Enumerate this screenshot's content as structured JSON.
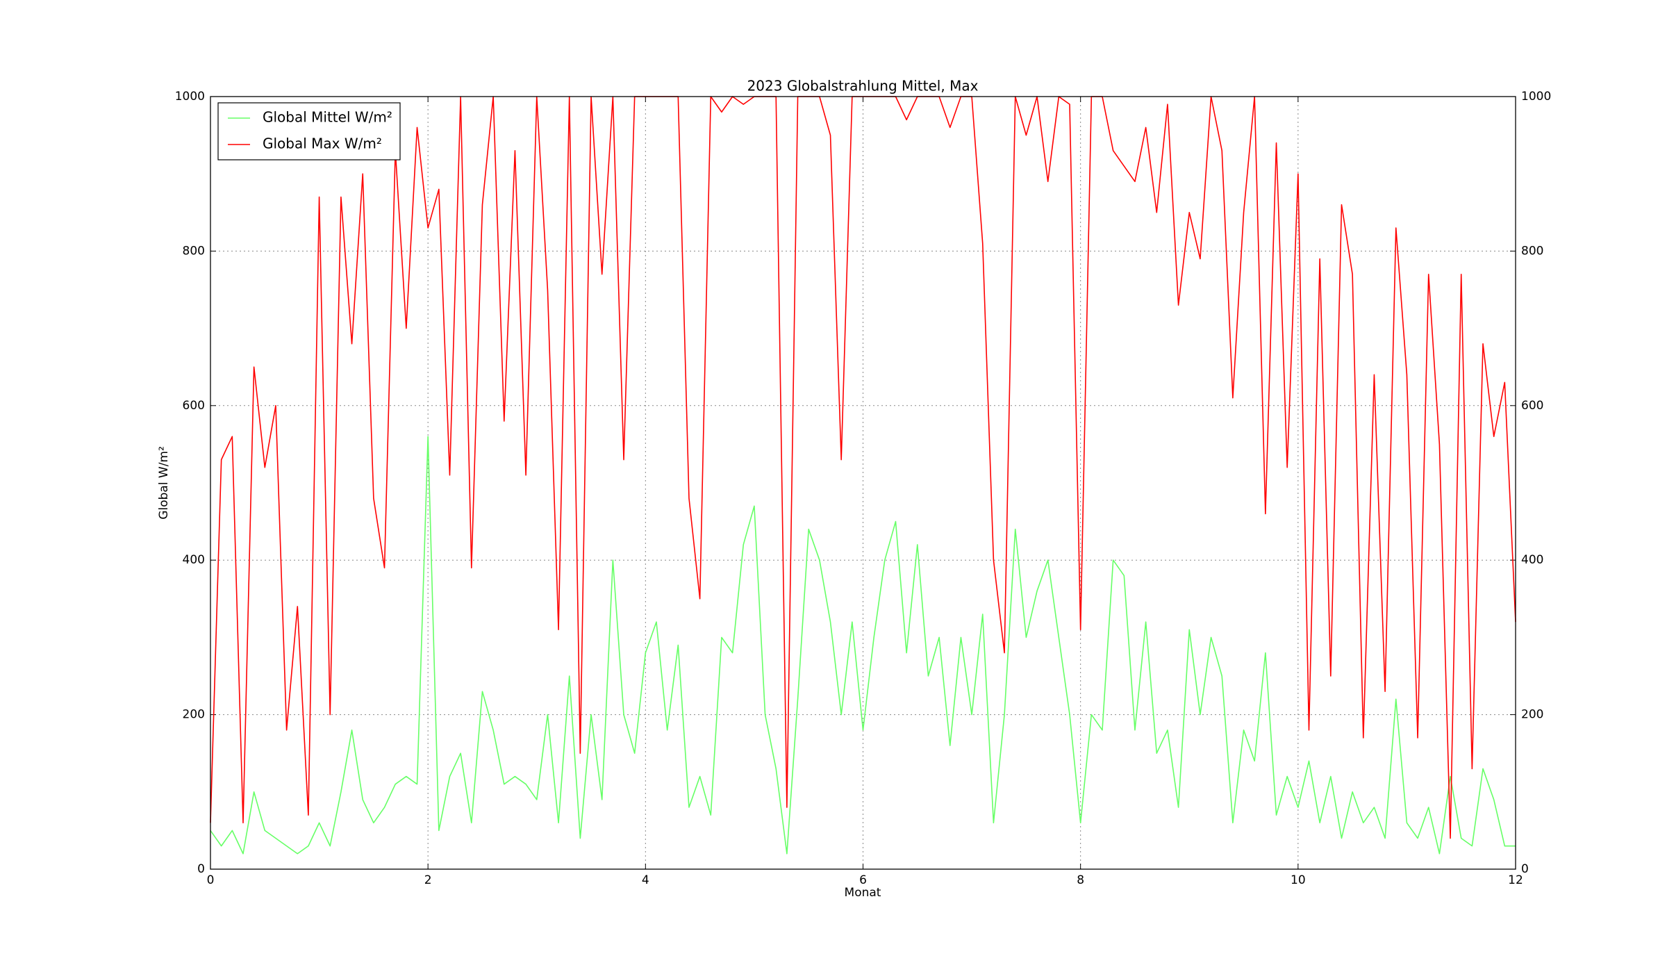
{
  "chart_data": {
    "type": "line",
    "title": "2023 Globalstrahlung Mittel, Max",
    "xlabel": "Monat",
    "ylabel": "Global W/m²",
    "x": [
      0,
      0.1,
      0.2,
      0.3,
      0.4,
      0.5,
      0.6,
      0.7,
      0.8,
      0.9,
      1,
      1.1,
      1.2,
      1.3,
      1.4,
      1.5,
      1.6,
      1.7,
      1.8,
      1.9,
      2,
      2.1,
      2.2,
      2.3,
      2.4,
      2.5,
      2.6,
      2.7,
      2.8,
      2.9,
      3,
      3.1,
      3.2,
      3.3,
      3.4,
      3.5,
      3.6,
      3.7,
      3.8,
      3.9,
      4,
      4.1,
      4.2,
      4.3,
      4.4,
      4.5,
      4.6,
      4.7,
      4.8,
      4.9,
      5,
      5.1,
      5.2,
      5.3,
      5.4,
      5.5,
      5.6,
      5.7,
      5.8,
      5.9,
      6,
      6.1,
      6.2,
      6.3,
      6.4,
      6.5,
      6.6,
      6.7,
      6.8,
      6.9,
      7,
      7.1,
      7.2,
      7.3,
      7.4,
      7.5,
      7.6,
      7.7,
      7.8,
      7.9,
      8,
      8.1,
      8.2,
      8.3,
      8.4,
      8.5,
      8.6,
      8.7,
      8.8,
      8.9,
      9,
      9.1,
      9.2,
      9.3,
      9.4,
      9.5,
      9.6,
      9.7,
      9.8,
      9.9,
      10,
      10.1,
      10.2,
      10.3,
      10.4,
      10.5,
      10.6,
      10.7,
      10.8,
      10.9,
      11,
      11.1,
      11.2,
      11.3,
      11.4,
      11.5,
      11.6,
      11.7,
      11.8,
      11.9,
      12
    ],
    "series": [
      {
        "name": "Global Mittel W/m²",
        "color": "#66ff66",
        "values": [
          50,
          30,
          50,
          20,
          100,
          50,
          40,
          30,
          20,
          30,
          60,
          30,
          100,
          180,
          90,
          60,
          80,
          110,
          120,
          110,
          560,
          50,
          120,
          150,
          60,
          230,
          180,
          110,
          120,
          110,
          90,
          200,
          60,
          250,
          40,
          200,
          90,
          400,
          200,
          150,
          280,
          320,
          180,
          290,
          80,
          120,
          70,
          300,
          280,
          420,
          470,
          200,
          130,
          20,
          220,
          440,
          400,
          320,
          200,
          320,
          180,
          300,
          400,
          450,
          280,
          420,
          250,
          300,
          160,
          300,
          200,
          330,
          60,
          200,
          440,
          300,
          360,
          400,
          300,
          200,
          60,
          200,
          180,
          400,
          380,
          180,
          320,
          150,
          180,
          80,
          310,
          200,
          300,
          250,
          60,
          180,
          140,
          280,
          70,
          120,
          80,
          140,
          60,
          120,
          40,
          100,
          60,
          80,
          40,
          220,
          60,
          40,
          80,
          20,
          120,
          40,
          30,
          130,
          90,
          30,
          30
        ]
      },
      {
        "name": "Global Max W/m²",
        "color": "#ff0000",
        "values": [
          60,
          530,
          560,
          60,
          650,
          520,
          600,
          180,
          340,
          70,
          870,
          200,
          870,
          680,
          900,
          480,
          390,
          930,
          700,
          960,
          830,
          880,
          510,
          1000,
          390,
          860,
          1000,
          580,
          930,
          510,
          1000,
          750,
          310,
          1000,
          150,
          1000,
          770,
          1000,
          530,
          1000,
          1000,
          1000,
          1000,
          1000,
          480,
          350,
          1000,
          980,
          1000,
          990,
          1000,
          1000,
          1000,
          80,
          1000,
          1000,
          1000,
          950,
          530,
          1000,
          1000,
          1000,
          1000,
          1000,
          970,
          1000,
          1000,
          1000,
          960,
          1000,
          1000,
          810,
          400,
          280,
          1000,
          950,
          1000,
          890,
          1000,
          990,
          310,
          1000,
          1000,
          930,
          910,
          890,
          960,
          850,
          990,
          730,
          850,
          790,
          1000,
          930,
          610,
          850,
          1000,
          460,
          940,
          520,
          900,
          180,
          790,
          250,
          860,
          770,
          170,
          640,
          230,
          830,
          640,
          170,
          770,
          550,
          40,
          770,
          130,
          680,
          560,
          630,
          320
        ]
      }
    ],
    "xlim": [
      0,
      12
    ],
    "xticks": [
      0,
      2,
      4,
      6,
      8,
      10,
      12
    ],
    "ylim": [
      0,
      1000
    ],
    "yticks": [
      0,
      200,
      400,
      600,
      800,
      1000
    ],
    "y2lim": [
      0,
      1000
    ],
    "y2ticks": [
      0,
      200,
      400,
      600,
      800,
      1000
    ],
    "grid": true,
    "legend": "upper left"
  }
}
